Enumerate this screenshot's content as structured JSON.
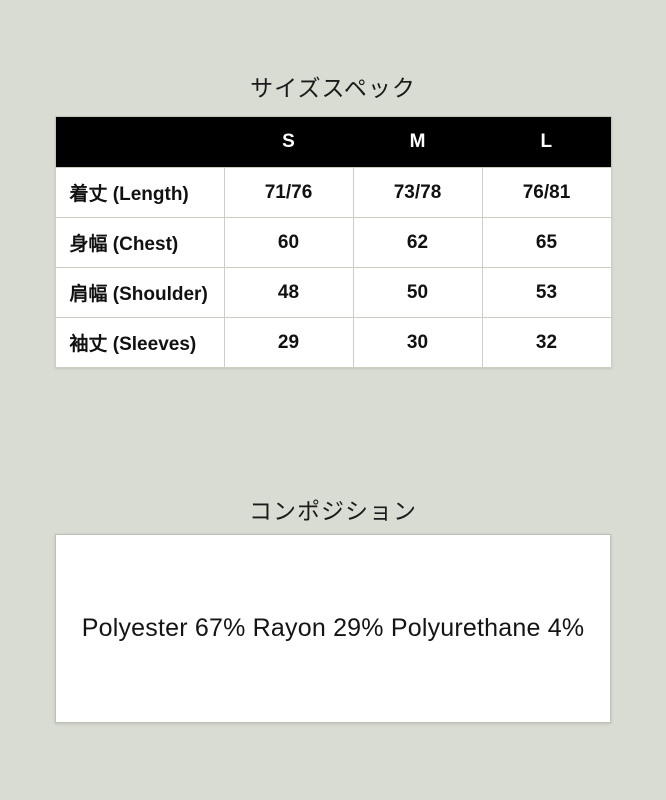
{
  "colors": {
    "background": "#d9dcd2",
    "table_header_bg": "#000000",
    "table_header_text": "#ffffff",
    "cell_bg": "#ffffff",
    "cell_border": "#cbcfc4",
    "text": "#111111"
  },
  "size_spec": {
    "title": "サイズスペック",
    "table": {
      "header": [
        "",
        "S",
        "M",
        "L"
      ],
      "rows": [
        {
          "label": "着丈 (Length)",
          "values": [
            "71/76",
            "73/78",
            "76/81"
          ]
        },
        {
          "label": "身幅 (Chest)",
          "values": [
            "60",
            "62",
            "65"
          ]
        },
        {
          "label": "肩幅 (Shoulder)",
          "values": [
            "48",
            "50",
            "53"
          ]
        },
        {
          "label": "袖丈 (Sleeves)",
          "values": [
            "29",
            "30",
            "32"
          ]
        }
      ]
    }
  },
  "composition": {
    "title": "コンポジション",
    "text": "Polyester 67% Rayon 29% Polyurethane 4%"
  }
}
